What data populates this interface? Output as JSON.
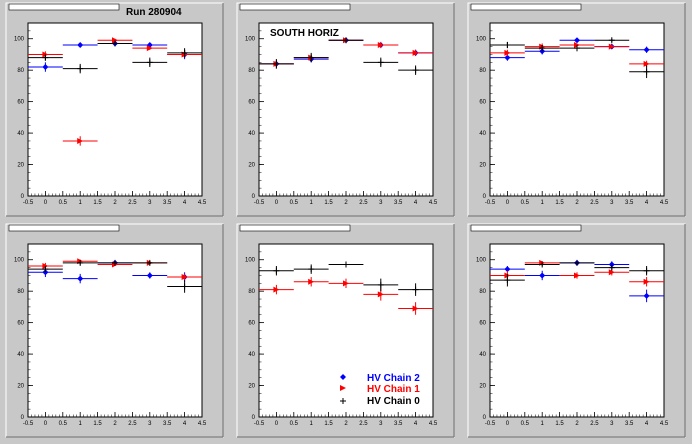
{
  "run_label": "Run 280904",
  "side_label": "SOUTH HORIZ",
  "legend": [
    {
      "label": "HV Chain 2",
      "color": "#0000ff",
      "marker": "diamond"
    },
    {
      "label": "HV Chain 1",
      "color": "#ff0000",
      "marker": "triangle"
    },
    {
      "label": "HV Chain 0",
      "color": "#000000",
      "marker": "plus"
    }
  ],
  "colors": {
    "chain2": "#0000ff",
    "chain1": "#ff0000",
    "chain0": "#000000",
    "pad": "#c8c8c8",
    "frame": "#ffffff"
  },
  "chart_data": [
    {
      "type": "scatter",
      "title": "",
      "xlim": [
        -0.5,
        4.5
      ],
      "ylim": [
        0,
        110
      ],
      "xticks": [
        "-0.5",
        "0",
        "0.5",
        "1",
        "1.5",
        "2",
        "2.5",
        "3",
        "3.5",
        "4",
        "4.5"
      ],
      "yticks": [
        "0",
        "20",
        "40",
        "60",
        "80",
        "100"
      ],
      "series": [
        {
          "color": "#0000ff",
          "marker": "diamond",
          "x": [
            0,
            1,
            2,
            3,
            4
          ],
          "y": [
            82,
            96,
            97,
            96,
            90
          ],
          "yerr": [
            3,
            1,
            1,
            1,
            3
          ]
        },
        {
          "color": "#ff0000",
          "marker": "triangle",
          "x": [
            0,
            1,
            2,
            3,
            4
          ],
          "y": [
            90,
            35,
            99,
            94,
            90
          ],
          "yerr": [
            2,
            3,
            1,
            1,
            2
          ]
        },
        {
          "color": "#000000",
          "marker": "plus",
          "x": [
            0,
            1,
            2,
            3,
            4
          ],
          "y": [
            88,
            81,
            97,
            85,
            91
          ],
          "yerr": [
            2,
            3,
            1,
            3,
            3
          ]
        }
      ]
    },
    {
      "type": "scatter",
      "title": "",
      "xlim": [
        -0.5,
        4.5
      ],
      "ylim": [
        0,
        110
      ],
      "xticks": [
        "-0.5",
        "0",
        "0.5",
        "1",
        "1.5",
        "2",
        "2.5",
        "3",
        "3.5",
        "4",
        "4.5"
      ],
      "yticks": [
        "0",
        "20",
        "40",
        "60",
        "80",
        "100"
      ],
      "series": [
        {
          "color": "#0000ff",
          "marker": "diamond",
          "x": [
            0,
            1,
            2,
            3,
            4
          ],
          "y": [
            84,
            87,
            99,
            96,
            91
          ],
          "yerr": [
            2,
            2,
            1,
            1,
            2
          ]
        },
        {
          "color": "#ff0000",
          "marker": "triangle",
          "x": [
            0,
            1,
            2,
            3,
            4
          ],
          "y": [
            84,
            88,
            99,
            96,
            91
          ],
          "yerr": [
            3,
            2,
            1,
            2,
            2
          ]
        },
        {
          "color": "#000000",
          "marker": "plus",
          "x": [
            0,
            1,
            2,
            3,
            4
          ],
          "y": [
            84,
            88,
            99,
            85,
            80
          ],
          "yerr": [
            3,
            3,
            1,
            3,
            3
          ]
        }
      ]
    },
    {
      "type": "scatter",
      "title": "",
      "xlim": [
        -0.5,
        4.5
      ],
      "ylim": [
        0,
        110
      ],
      "xticks": [
        "-0.5",
        "0",
        "0.5",
        "1",
        "1.5",
        "2",
        "2.5",
        "3",
        "3.5",
        "4",
        "4.5"
      ],
      "yticks": [
        "0",
        "20",
        "40",
        "60",
        "80",
        "100"
      ],
      "series": [
        {
          "color": "#0000ff",
          "marker": "diamond",
          "x": [
            0,
            1,
            2,
            3,
            4
          ],
          "y": [
            88,
            92,
            99,
            95,
            93
          ],
          "yerr": [
            2,
            2,
            1,
            1,
            2
          ]
        },
        {
          "color": "#ff0000",
          "marker": "triangle",
          "x": [
            0,
            1,
            2,
            3,
            4
          ],
          "y": [
            91,
            95,
            96,
            95,
            84
          ],
          "yerr": [
            2,
            2,
            1,
            1,
            2
          ]
        },
        {
          "color": "#000000",
          "marker": "plus",
          "x": [
            0,
            1,
            2,
            3,
            4
          ],
          "y": [
            96,
            94,
            94,
            99,
            79
          ],
          "yerr": [
            2,
            2,
            2,
            1,
            4
          ]
        }
      ]
    },
    {
      "type": "scatter",
      "title": "",
      "xlim": [
        -0.5,
        4.5
      ],
      "ylim": [
        0,
        110
      ],
      "xticks": [
        "-0.5",
        "0",
        "0.5",
        "1",
        "1.5",
        "2",
        "2.5",
        "3",
        "3.5",
        "4",
        "4.5"
      ],
      "yticks": [
        "0",
        "20",
        "40",
        "60",
        "80",
        "100"
      ],
      "series": [
        {
          "color": "#0000ff",
          "marker": "diamond",
          "x": [
            0,
            1,
            2,
            3,
            4
          ],
          "y": [
            92,
            88,
            98,
            90,
            89
          ],
          "yerr": [
            3,
            3,
            1,
            2,
            3
          ]
        },
        {
          "color": "#ff0000",
          "marker": "triangle",
          "x": [
            0,
            1,
            2,
            3,
            4
          ],
          "y": [
            96,
            99,
            97,
            98,
            89
          ],
          "yerr": [
            2,
            1,
            1,
            1,
            2
          ]
        },
        {
          "color": "#000000",
          "marker": "plus",
          "x": [
            0,
            1,
            2,
            3,
            4
          ],
          "y": [
            94,
            98,
            98,
            98,
            83
          ],
          "yerr": [
            2,
            1,
            1,
            1,
            4
          ]
        }
      ]
    },
    {
      "type": "scatter",
      "title": "",
      "xlim": [
        -0.5,
        4.5
      ],
      "ylim": [
        0,
        110
      ],
      "xticks": [
        "-0.5",
        "0",
        "0.5",
        "1",
        "1.5",
        "2",
        "2.5",
        "3",
        "3.5",
        "4",
        "4.5"
      ],
      "yticks": [
        "0",
        "20",
        "40",
        "60",
        "80",
        "100"
      ],
      "series": [
        {
          "color": "#0000ff",
          "marker": "diamond",
          "x": [],
          "y": [],
          "yerr": []
        },
        {
          "color": "#ff0000",
          "marker": "triangle",
          "x": [
            0,
            1,
            2,
            3,
            4
          ],
          "y": [
            81,
            86,
            85,
            78,
            69
          ],
          "yerr": [
            3,
            3,
            3,
            4,
            4
          ]
        },
        {
          "color": "#000000",
          "marker": "plus",
          "x": [
            0,
            1,
            2,
            3,
            4
          ],
          "y": [
            93,
            94,
            97,
            84,
            81
          ],
          "yerr": [
            3,
            3,
            1,
            4,
            4
          ]
        }
      ]
    },
    {
      "type": "scatter",
      "title": "",
      "xlim": [
        -0.5,
        4.5
      ],
      "ylim": [
        0,
        110
      ],
      "xticks": [
        "-0.5",
        "0",
        "0.5",
        "1",
        "1.5",
        "2",
        "2.5",
        "3",
        "3.5",
        "4",
        "4.5"
      ],
      "yticks": [
        "0",
        "20",
        "40",
        "60",
        "80",
        "100"
      ],
      "series": [
        {
          "color": "#0000ff",
          "marker": "diamond",
          "x": [
            0,
            1,
            2,
            3,
            4
          ],
          "y": [
            94,
            90,
            98,
            97,
            77
          ],
          "yerr": [
            2,
            3,
            1,
            2,
            4
          ]
        },
        {
          "color": "#ff0000",
          "marker": "triangle",
          "x": [
            0,
            1,
            2,
            3,
            4
          ],
          "y": [
            90,
            98,
            90,
            92,
            86
          ],
          "yerr": [
            3,
            1,
            2,
            2,
            3
          ]
        },
        {
          "color": "#000000",
          "marker": "plus",
          "x": [
            0,
            1,
            2,
            3,
            4
          ],
          "y": [
            87,
            97,
            98,
            95,
            93
          ],
          "yerr": [
            4,
            1,
            1,
            1,
            3
          ]
        }
      ]
    }
  ]
}
